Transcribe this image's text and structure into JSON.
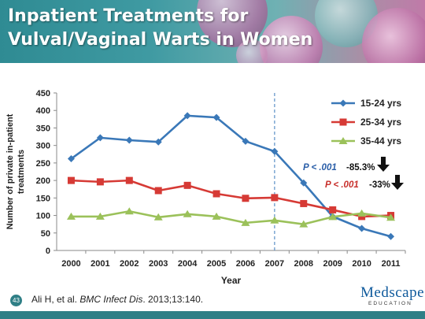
{
  "slide": {
    "title_line1": "Inpatient Treatments for",
    "title_line2": "Vulval/Vaginal Warts in Women",
    "slide_number": "43",
    "citation_authors": "Ali H, et al. ",
    "citation_journal": "BMC Infect Dis",
    "citation_rest": ". 2013;13:140.",
    "logo_brand": "Medscape",
    "logo_sub": "EDUCATION"
  },
  "chart_data": {
    "type": "line",
    "xlabel": "Year",
    "ylabel_line1": "Number of private in-patient",
    "ylabel_line2": "treatments",
    "categories": [
      "2000",
      "2001",
      "2002",
      "2003",
      "2004",
      "2005",
      "2006",
      "2007",
      "2008",
      "2009",
      "2010",
      "2011"
    ],
    "ylim": [
      0,
      450
    ],
    "yticks": [
      0,
      50,
      100,
      150,
      200,
      250,
      300,
      350,
      400,
      450
    ],
    "grid": false,
    "legend_position": "top-right",
    "reference_line_category": "2007",
    "series": [
      {
        "name": "15-24 yrs",
        "color": "#3a78b8",
        "marker": "diamond",
        "values": [
          262,
          322,
          315,
          310,
          385,
          380,
          312,
          283,
          193,
          97,
          63,
          40
        ]
      },
      {
        "name": "25-34 yrs",
        "color": "#d63a35",
        "marker": "square",
        "values": [
          200,
          196,
          200,
          171,
          186,
          162,
          149,
          151,
          134,
          116,
          97,
          100
        ]
      },
      {
        "name": "35-44 yrs",
        "color": "#9bc15a",
        "marker": "triangle",
        "values": [
          97,
          97,
          112,
          95,
          104,
          97,
          79,
          86,
          75,
          96,
          106,
          94
        ]
      }
    ],
    "annotations": [
      {
        "p_label": "P < .001",
        "p_color": "#2a5ea8",
        "change": "-85.3%"
      },
      {
        "p_label": "P < .001",
        "p_color": "#c8302c",
        "change": "-33%"
      }
    ]
  }
}
